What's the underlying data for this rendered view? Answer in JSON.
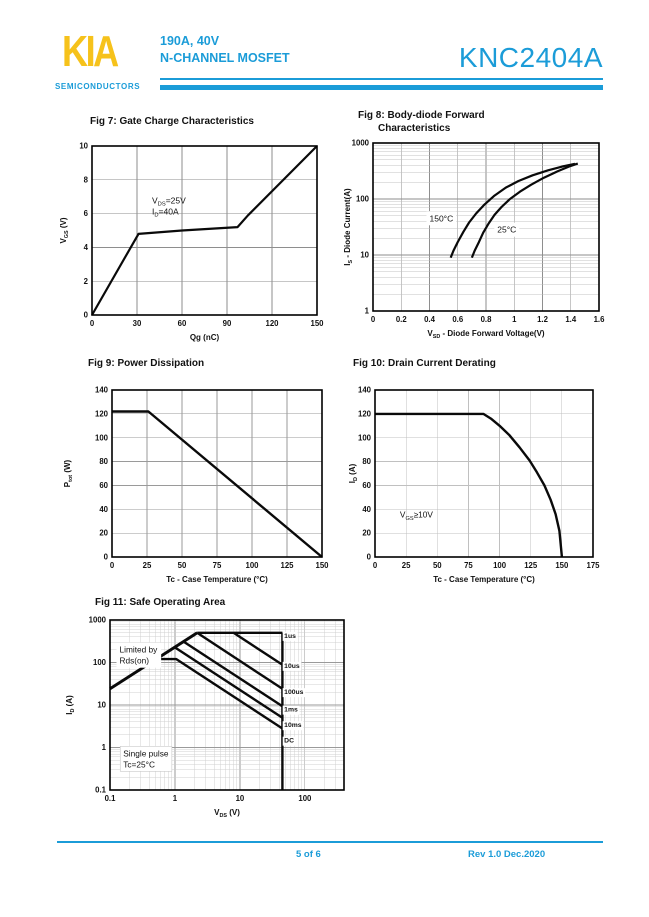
{
  "header": {
    "logo": "KIA",
    "logo_sub": "SEMICONDUCTORS",
    "spec_line1": "190A, 40V",
    "spec_line2": "N-CHANNEL MOSFET",
    "part_number": "KNC2404A",
    "accent_color": "#1b9cd8",
    "logo_color": "#f6c21b"
  },
  "footer": {
    "page": "5 of 6",
    "revision": "Rev 1.0 Dec.2020"
  },
  "chart_data": [
    {
      "id": "fig7",
      "type": "line",
      "title": "Fig 7: Gate Charge Characteristics",
      "xlabel": "Qg (nC)",
      "ylabel": "V_{GS} (V)",
      "xaxis": {
        "scale": "linear",
        "min": 0,
        "max": 150,
        "step": 30,
        "labels": [
          "0",
          "30",
          "60",
          "90",
          "120",
          "150"
        ]
      },
      "yaxis": {
        "scale": "linear",
        "min": 0,
        "max": 10,
        "step": 2,
        "labels": [
          "0",
          "2",
          "4",
          "6",
          "8",
          "10"
        ]
      },
      "series": [
        {
          "name": "gate-charge-curve",
          "color": "#0a0a0a",
          "width": 2.2,
          "points": [
            [
              0,
              0
            ],
            [
              31,
              4.8
            ],
            [
              60,
              5.0
            ],
            [
              97,
              5.2
            ],
            [
              104,
              5.9
            ],
            [
              150,
              10
            ]
          ]
        }
      ],
      "annotations": [
        {
          "text": "V_{DS}=25V\nI_{D}=40A",
          "x": 40,
          "y": 6.6,
          "size": 8.5
        }
      ]
    },
    {
      "id": "fig8",
      "type": "line",
      "title": "Fig 8: Body-diode Forward",
      "title2": "Characteristics",
      "xlabel": "V_{SD} - Diode Forward Voltage(V)",
      "ylabel": "I_{S} - Diode Current(A)",
      "xaxis": {
        "scale": "linear",
        "min": 0,
        "max": 1.6,
        "step": 0.2,
        "labels": [
          "0",
          "0.2",
          "0.4",
          "0.6",
          "0.8",
          "1",
          "1.2",
          "1.4",
          "1.6"
        ]
      },
      "yaxis": {
        "scale": "log",
        "min": 1,
        "max": 1000,
        "labels": [
          "1",
          "10",
          "100",
          "1000"
        ]
      },
      "series": [
        {
          "name": "curve-150C",
          "color": "#0a0a0a",
          "width": 2.2,
          "points": [
            [
              0.55,
              9
            ],
            [
              0.57,
              12
            ],
            [
              0.6,
              17
            ],
            [
              0.64,
              26
            ],
            [
              0.68,
              38
            ],
            [
              0.73,
              55
            ],
            [
              0.79,
              80
            ],
            [
              0.86,
              115
            ],
            [
              0.94,
              160
            ],
            [
              1.03,
              210
            ],
            [
              1.13,
              265
            ],
            [
              1.24,
              325
            ],
            [
              1.35,
              385
            ],
            [
              1.43,
              425
            ]
          ]
        },
        {
          "name": "curve-25C",
          "color": "#0a0a0a",
          "width": 2.2,
          "points": [
            [
              0.7,
              9
            ],
            [
              0.72,
              12
            ],
            [
              0.75,
              17
            ],
            [
              0.78,
              25
            ],
            [
              0.82,
              37
            ],
            [
              0.86,
              52
            ],
            [
              0.91,
              72
            ],
            [
              0.97,
              100
            ],
            [
              1.04,
              135
            ],
            [
              1.12,
              180
            ],
            [
              1.21,
              240
            ],
            [
              1.31,
              315
            ],
            [
              1.4,
              390
            ],
            [
              1.45,
              428
            ]
          ]
        }
      ],
      "annotations": [
        {
          "text": "150°C",
          "x": 0.4,
          "y": 40,
          "size": 8.5,
          "bg": true
        },
        {
          "text": "25°C",
          "x": 0.88,
          "y": 25,
          "size": 8.5,
          "bg": true
        }
      ]
    },
    {
      "id": "fig9",
      "type": "line",
      "title": "Fig 9: Power Dissipation",
      "xlabel": "Tc - Case Temperature (°C)",
      "ylabel": "P_{tot} (W)",
      "xaxis": {
        "scale": "linear",
        "min": 0,
        "max": 150,
        "step": 25,
        "labels": [
          "0",
          "25",
          "50",
          "75",
          "100",
          "125",
          "150"
        ]
      },
      "yaxis": {
        "scale": "linear",
        "min": 0,
        "max": 140,
        "step": 20,
        "labels": [
          "0",
          "20",
          "40",
          "60",
          "80",
          "100",
          "120",
          "140"
        ]
      },
      "series": [
        {
          "name": "power-dissipation-curve",
          "color": "#0a0a0a",
          "width": 2.4,
          "points": [
            [
              0,
              122
            ],
            [
              26,
              122
            ],
            [
              150,
              0
            ]
          ]
        }
      ],
      "annotations": []
    },
    {
      "id": "fig10",
      "type": "line",
      "title": "Fig 10: Drain Current Derating",
      "xlabel": "Tc - Case Temperature (°C)",
      "ylabel": "I_{D} (A)",
      "xaxis": {
        "scale": "linear",
        "min": 0,
        "max": 175,
        "step": 25,
        "labels": [
          "0",
          "25",
          "50",
          "75",
          "100",
          "125",
          "150",
          "175"
        ]
      },
      "yaxis": {
        "scale": "linear",
        "min": 0,
        "max": 140,
        "step": 20,
        "labels": [
          "0",
          "20",
          "40",
          "60",
          "80",
          "100",
          "120",
          "140"
        ]
      },
      "series": [
        {
          "name": "drain-current-derating-curve",
          "color": "#0a0a0a",
          "width": 2.4,
          "points": [
            [
              0,
              120
            ],
            [
              87,
              120
            ],
            [
              93,
              116
            ],
            [
              100,
              110
            ],
            [
              108,
              102
            ],
            [
              116,
              92
            ],
            [
              124,
              81
            ],
            [
              130,
              71
            ],
            [
              136,
              60
            ],
            [
              141,
              48
            ],
            [
              145,
              36
            ],
            [
              148,
              22
            ],
            [
              150,
              0
            ]
          ]
        }
      ],
      "annotations": [
        {
          "text": "V_{GS}≥10V",
          "x": 20,
          "y": 33,
          "size": 8.3
        }
      ]
    },
    {
      "id": "fig11",
      "type": "line",
      "title": "Fig 11: Safe Operating Area",
      "xlabel": "V_{DS} (V)",
      "ylabel": "I_{D} (A)",
      "xaxis": {
        "scale": "log",
        "min": 0.1,
        "max": 400,
        "labels": [
          "0.1",
          "1",
          "10",
          "100"
        ]
      },
      "yaxis": {
        "scale": "log",
        "min": 0.1,
        "max": 1000,
        "labels": [
          "0.1",
          "1",
          "10",
          "100",
          "1000"
        ]
      },
      "series": [
        {
          "name": "rds-on-limit-line",
          "color": "#0a0a0a",
          "width": 3,
          "points": [
            [
              0.1,
              24
            ],
            [
              2.2,
              500
            ]
          ]
        },
        {
          "name": "line-1us",
          "color": "#0a0a0a",
          "width": 2.4,
          "points": [
            [
              2.2,
              500
            ],
            [
              45,
              500
            ]
          ],
          "label": {
            "text": "1us",
            "x": 48,
            "y": 380
          }
        },
        {
          "name": "avalanche-limit-line",
          "color": "#0a0a0a",
          "width": 2.4,
          "points": [
            [
              45,
              500
            ],
            [
              45,
              0.103
            ]
          ]
        },
        {
          "name": "line-10us",
          "color": "#0a0a0a",
          "width": 2.4,
          "points": [
            [
              8,
              500
            ],
            [
              45,
              89
            ]
          ],
          "label": {
            "text": "10us",
            "x": 48,
            "y": 75
          }
        },
        {
          "name": "line-100us",
          "color": "#0a0a0a",
          "width": 2.4,
          "points": [
            [
              2.2,
              500
            ],
            [
              45,
              24
            ]
          ],
          "label": {
            "text": "100us",
            "x": 48,
            "y": 18
          }
        },
        {
          "name": "line-1ms",
          "color": "#0a0a0a",
          "width": 2.4,
          "points": [
            [
              1.32,
              318
            ],
            [
              45,
              9.3
            ]
          ],
          "label": {
            "text": "1ms",
            "x": 48,
            "y": 7
          }
        },
        {
          "name": "line-10ms",
          "color": "#0a0a0a",
          "width": 2.4,
          "points": [
            [
              0.97,
              233
            ],
            [
              45,
              5.0
            ]
          ],
          "label": {
            "text": "10ms",
            "x": 48,
            "y": 3.0
          }
        },
        {
          "name": "line-dc",
          "color": "#0a0a0a",
          "width": 2.4,
          "points": [
            [
              0.52,
              120
            ],
            [
              1.05,
              120
            ],
            [
              45,
              2.8
            ]
          ],
          "label": {
            "text": "DC",
            "x": 48,
            "y": 1.3
          }
        }
      ],
      "annotations": [
        {
          "text": "Limited by\nRds(on)",
          "x": 0.14,
          "y": 170,
          "size": 8.3,
          "bg": true
        },
        {
          "text": "Single pulse\nTc=25°C",
          "x": 0.16,
          "y": 0.62,
          "size": 8.3,
          "bg": true,
          "box": true
        }
      ]
    }
  ]
}
